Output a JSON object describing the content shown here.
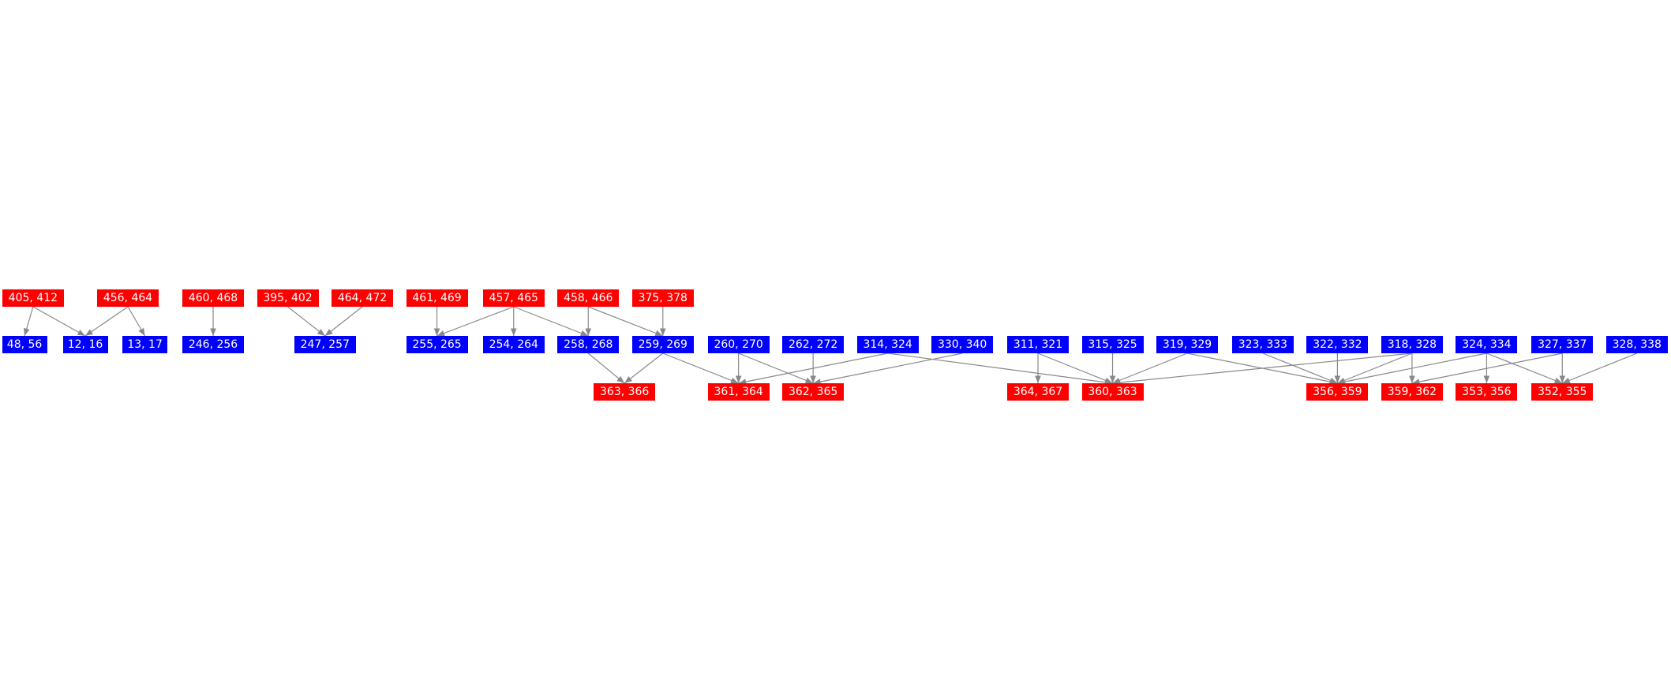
{
  "colors": {
    "red": "#ff0000",
    "blue": "#0000ff",
    "edge": "#888888",
    "text": "#ffffff"
  },
  "nodes": [
    {
      "id": "405, 412",
      "color": "red"
    },
    {
      "id": "456, 464",
      "color": "red"
    },
    {
      "id": "460, 468",
      "color": "red"
    },
    {
      "id": "395, 402",
      "color": "red"
    },
    {
      "id": "464, 472",
      "color": "red"
    },
    {
      "id": "461, 469",
      "color": "red"
    },
    {
      "id": "457, 465",
      "color": "red"
    },
    {
      "id": "458, 466",
      "color": "red"
    },
    {
      "id": "375, 378",
      "color": "red"
    },
    {
      "id": "48, 56",
      "color": "blue"
    },
    {
      "id": "12, 16",
      "color": "blue"
    },
    {
      "id": "13, 17",
      "color": "blue"
    },
    {
      "id": "246, 256",
      "color": "blue"
    },
    {
      "id": "247, 257",
      "color": "blue"
    },
    {
      "id": "255, 265",
      "color": "blue"
    },
    {
      "id": "254, 264",
      "color": "blue"
    },
    {
      "id": "258, 268",
      "color": "blue"
    },
    {
      "id": "259, 269",
      "color": "blue"
    },
    {
      "id": "260, 270",
      "color": "blue"
    },
    {
      "id": "262, 272",
      "color": "blue"
    },
    {
      "id": "314, 324",
      "color": "blue"
    },
    {
      "id": "330, 340",
      "color": "blue"
    },
    {
      "id": "311, 321",
      "color": "blue"
    },
    {
      "id": "315, 325",
      "color": "blue"
    },
    {
      "id": "319, 329",
      "color": "blue"
    },
    {
      "id": "323, 333",
      "color": "blue"
    },
    {
      "id": "322, 332",
      "color": "blue"
    },
    {
      "id": "318, 328",
      "color": "blue"
    },
    {
      "id": "324, 334",
      "color": "blue"
    },
    {
      "id": "327, 337",
      "color": "blue"
    },
    {
      "id": "328, 338",
      "color": "blue"
    },
    {
      "id": "363, 366",
      "color": "red"
    },
    {
      "id": "361, 364",
      "color": "red"
    },
    {
      "id": "362, 365",
      "color": "red"
    },
    {
      "id": "364, 367",
      "color": "red"
    },
    {
      "id": "360, 363",
      "color": "red"
    },
    {
      "id": "356, 359",
      "color": "red"
    },
    {
      "id": "359, 362",
      "color": "red"
    },
    {
      "id": "353, 356",
      "color": "red"
    },
    {
      "id": "352, 355",
      "color": "red"
    }
  ],
  "edges": [
    [
      "405, 412",
      "48, 56"
    ],
    [
      "405, 412",
      "12, 16"
    ],
    [
      "456, 464",
      "12, 16"
    ],
    [
      "456, 464",
      "13, 17"
    ],
    [
      "460, 468",
      "246, 256"
    ],
    [
      "395, 402",
      "247, 257"
    ],
    [
      "464, 472",
      "247, 257"
    ],
    [
      "461, 469",
      "255, 265"
    ],
    [
      "457, 465",
      "255, 265"
    ],
    [
      "457, 465",
      "254, 264"
    ],
    [
      "457, 465",
      "258, 268"
    ],
    [
      "458, 466",
      "258, 268"
    ],
    [
      "458, 466",
      "259, 269"
    ],
    [
      "375, 378",
      "259, 269"
    ],
    [
      "258, 268",
      "363, 366"
    ],
    [
      "259, 269",
      "363, 366"
    ],
    [
      "259, 269",
      "361, 364"
    ],
    [
      "260, 270",
      "361, 364"
    ],
    [
      "260, 270",
      "362, 365"
    ],
    [
      "262, 272",
      "362, 365"
    ],
    [
      "314, 324",
      "361, 364"
    ],
    [
      "314, 324",
      "360, 363"
    ],
    [
      "330, 340",
      "362, 365"
    ],
    [
      "311, 321",
      "364, 367"
    ],
    [
      "311, 321",
      "360, 363"
    ],
    [
      "315, 325",
      "360, 363"
    ],
    [
      "319, 329",
      "360, 363"
    ],
    [
      "319, 329",
      "356, 359"
    ],
    [
      "323, 333",
      "356, 359"
    ],
    [
      "322, 332",
      "356, 359"
    ],
    [
      "318, 328",
      "360, 363"
    ],
    [
      "318, 328",
      "356, 359"
    ],
    [
      "318, 328",
      "359, 362"
    ],
    [
      "324, 334",
      "356, 359"
    ],
    [
      "324, 334",
      "353, 356"
    ],
    [
      "324, 334",
      "352, 355"
    ],
    [
      "327, 337",
      "359, 362"
    ],
    [
      "327, 337",
      "352, 355"
    ],
    [
      "328, 338",
      "352, 355"
    ]
  ]
}
